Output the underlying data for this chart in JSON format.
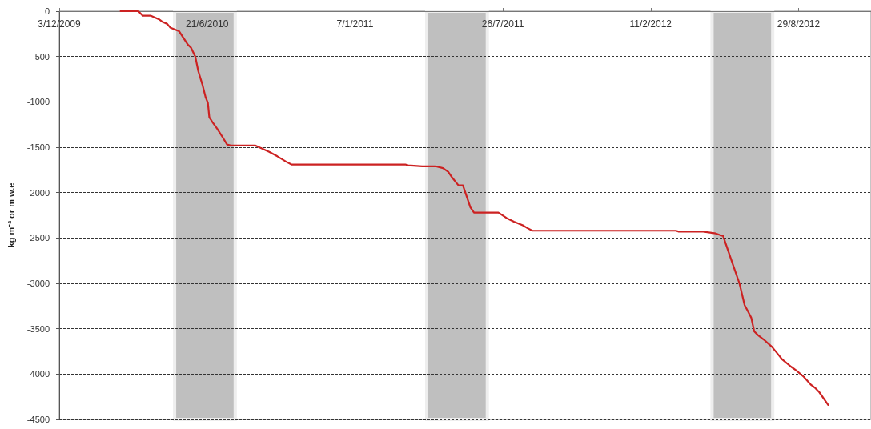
{
  "chart_data": {
    "type": "line",
    "ylabel": "kg m⁻² or m w.e",
    "color": "#cc2222",
    "marker": "none",
    "line_style": "solid",
    "grid": "y",
    "x": [
      "2010-02-24",
      "2010-03-20",
      "2010-03-26",
      "2010-04-06",
      "2010-04-17",
      "2010-04-22",
      "2010-04-28",
      "2010-05-02",
      "2010-05-14",
      "2010-05-18",
      "2010-05-26",
      "2010-05-30",
      "2010-06-05",
      "2010-06-09",
      "2010-06-15",
      "2010-06-19",
      "2010-06-22",
      "2010-06-24",
      "2010-06-28",
      "2010-07-05",
      "2010-07-12",
      "2010-07-18",
      "2010-07-23",
      "2010-08-02",
      "2010-08-25",
      "2010-09-13",
      "2010-09-24",
      "2010-10-06",
      "2010-10-13",
      "2011-03-16",
      "2011-03-20",
      "2011-04-08",
      "2011-04-26",
      "2011-05-06",
      "2011-05-13",
      "2011-05-19",
      "2011-05-27",
      "2011-06-02",
      "2011-06-12",
      "2011-06-17",
      "2011-07-20",
      "2011-07-31",
      "2011-08-10",
      "2011-08-22",
      "2011-08-28",
      "2011-09-04",
      "2012-03-16",
      "2012-03-20",
      "2012-04-22",
      "2012-05-09",
      "2012-05-19",
      "2012-06-01",
      "2012-06-10",
      "2012-06-17",
      "2012-06-21",
      "2012-06-26",
      "2012-06-30",
      "2012-07-05",
      "2012-07-13",
      "2012-07-24",
      "2012-08-03",
      "2012-08-07",
      "2012-08-19",
      "2012-08-26",
      "2012-09-05",
      "2012-09-15",
      "2012-09-20",
      "2012-09-26",
      "2012-10-08"
    ],
    "values": [
      0,
      0,
      -50,
      -50,
      -90,
      -120,
      -140,
      -180,
      -220,
      -270,
      -370,
      -400,
      -500,
      -660,
      -820,
      -950,
      -1010,
      -1170,
      -1220,
      -1300,
      -1390,
      -1470,
      -1480,
      -1480,
      -1480,
      -1550,
      -1600,
      -1660,
      -1690,
      -1690,
      -1700,
      -1710,
      -1710,
      -1730,
      -1770,
      -1840,
      -1920,
      -1920,
      -2160,
      -2220,
      -2220,
      -2280,
      -2320,
      -2360,
      -2390,
      -2420,
      -2420,
      -2430,
      -2430,
      -2450,
      -2480,
      -2790,
      -3000,
      -3240,
      -3300,
      -3380,
      -3530,
      -3570,
      -3620,
      -3700,
      -3800,
      -3840,
      -3920,
      -3960,
      -4030,
      -4120,
      -4150,
      -4200,
      -4340
    ],
    "xlim": [
      "2009-12-03",
      "2012-12-05"
    ],
    "xticks": [
      {
        "value": "2009-12-03",
        "label": "3/12/2009"
      },
      {
        "value": "2010-06-21",
        "label": "21/6/2010"
      },
      {
        "value": "2011-01-07",
        "label": "7/1/2011"
      },
      {
        "value": "2011-07-26",
        "label": "26/7/2011"
      },
      {
        "value": "2012-02-11",
        "label": "11/2/2012"
      },
      {
        "value": "2012-08-29",
        "label": "29/8/2012"
      }
    ],
    "ylim": [
      -4500,
      0
    ],
    "yticks": [
      -4500,
      -4000,
      -3500,
      -3000,
      -2500,
      -2000,
      -1500,
      -1000,
      -500,
      0
    ],
    "bands": [
      {
        "axis": "x",
        "from": "2010-05-08",
        "to": "2010-07-29",
        "color": "#bfbfbf"
      },
      {
        "axis": "x",
        "from": "2011-04-14",
        "to": "2011-07-05",
        "color": "#bfbfbf"
      },
      {
        "axis": "x",
        "from": "2012-05-04",
        "to": "2012-07-25",
        "color": "#bfbfbf"
      }
    ]
  }
}
